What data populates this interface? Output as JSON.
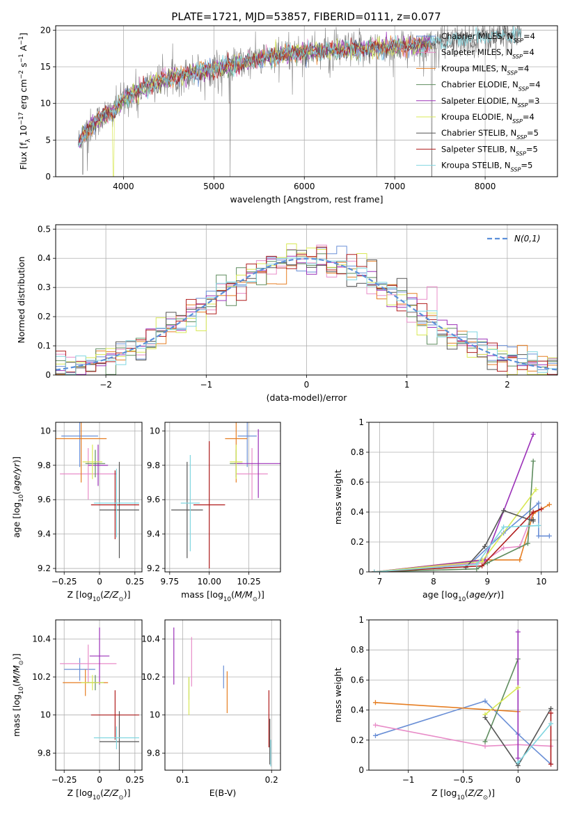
{
  "figure": {
    "title": "PLATE=1721, MJD=53857, FIBERID=0111, z=0.077"
  },
  "colors": {
    "Chabrier MILES": "#6a8fd6",
    "Salpeter MILES": "#e88cc8",
    "Kroupa MILES": "#e67e22",
    "Chabrier ELODIE": "#5e8c5e",
    "Salpeter ELODIE": "#9b30b8",
    "Kroupa ELODIE": "#d8e855",
    "Chabrier STELIB": "#555555",
    "Salpeter STELIB": "#b01c1c",
    "Kroupa STELIB": "#7fd6e0",
    "data": "#808080",
    "normal": "#5b8fd9",
    "grid": "#b0b0b0"
  },
  "chart_data": [
    {
      "id": "spectrum",
      "type": "line",
      "xlabel": "wavelength [Angstrom, rest frame]",
      "ylabel": "Flux [f_λ 10^-17 erg cm^-2 s^-1 A^-1]",
      "xlim": [
        3250,
        8800
      ],
      "ylim": [
        0,
        20.6
      ],
      "xticks": [
        4000,
        5000,
        6000,
        7000,
        8000
      ],
      "yticks": [
        0,
        5,
        10,
        15,
        20
      ],
      "legend_position": "upper-right",
      "legend": [
        {
          "label": "Chabrier MILES, N_SSP=4",
          "series": "Chabrier MILES"
        },
        {
          "label": "Salpeter MILES, N_SSP=4",
          "series": "Salpeter MILES"
        },
        {
          "label": "Kroupa MILES, N_SSP=4",
          "series": "Kroupa MILES"
        },
        {
          "label": "Chabrier ELODIE, N_SSP=4",
          "series": "Chabrier ELODIE"
        },
        {
          "label": "Salpeter ELODIE, N_SSP=3",
          "series": "Salpeter ELODIE"
        },
        {
          "label": "Kroupa ELODIE, N_SSP=4",
          "series": "Kroupa ELODIE"
        },
        {
          "label": "Chabrier STELIB, N_SSP=5",
          "series": "Chabrier STELIB"
        },
        {
          "label": "Salpeter STELIB, N_SSP=5",
          "series": "Salpeter STELIB"
        },
        {
          "label": "Kroupa STELIB, N_SSP=5",
          "series": "Kroupa STELIB"
        }
      ],
      "continuum": {
        "x": [
          3500,
          3600,
          3700,
          3800,
          3900,
          4000,
          4100,
          4200,
          4300,
          4400,
          4500,
          4700,
          4900,
          5100,
          5300,
          5500,
          5700,
          5900,
          6100,
          6300,
          6500,
          6700,
          6900,
          7100,
          7300,
          7500,
          7700,
          7900,
          8100,
          8300,
          8500
        ],
        "y": [
          4.5,
          6.5,
          7.5,
          8.5,
          9,
          10.5,
          11.5,
          12,
          12.5,
          13,
          13.5,
          14,
          14.5,
          15,
          15.5,
          16,
          16.5,
          17,
          17,
          17.2,
          17.3,
          17.5,
          17.6,
          17.8,
          18,
          18.3,
          18.6,
          18.9,
          19.2,
          19.4,
          19.6
        ]
      },
      "dips": [
        {
          "x": 3550,
          "y": 0.3
        },
        {
          "x": 3600,
          "y": 0.8
        },
        {
          "x": 5180,
          "y": 0
        },
        {
          "x": 6800,
          "y": 0
        },
        {
          "x": 7410,
          "y": 0
        }
      ]
    },
    {
      "id": "residuals",
      "type": "histogram",
      "xlabel": "(data-model)/error",
      "ylabel": "Normed distribution",
      "xlim": [
        -2.5,
        2.5
      ],
      "ylim": [
        0,
        0.515
      ],
      "xticks": [
        -2,
        -1,
        0,
        1,
        2
      ],
      "yticks": [
        0.0,
        0.1,
        0.2,
        0.3,
        0.4,
        0.5
      ],
      "bin_width": 0.1,
      "legend_position": "upper-right",
      "legend": [
        {
          "label": "N(0,1)",
          "style": "dashed"
        }
      ]
    },
    {
      "id": "age-vs-Z",
      "type": "errorbar",
      "xlabel": "Z [log10(Z/Z_sun)]",
      "ylabel": "age  [log10(age/yr)]",
      "xlim": [
        -0.31,
        0.3
      ],
      "ylim": [
        9.18,
        10.05
      ],
      "xticks": [
        -0.25,
        0.0,
        0.25
      ],
      "yticks": [
        9.2,
        9.4,
        9.6,
        9.8,
        10.0
      ],
      "points": [
        {
          "series": "Chabrier MILES",
          "x": -0.14,
          "xerr": 0.13,
          "y": 9.97,
          "yerr": 0.18
        },
        {
          "series": "Salpeter MILES",
          "x": -0.08,
          "xerr": 0.2,
          "y": 9.75,
          "yerr": 0.15
        },
        {
          "series": "Kroupa MILES",
          "x": -0.13,
          "xerr": 0.18,
          "y": 9.955,
          "yerr": 0.255
        },
        {
          "series": "Chabrier ELODIE",
          "x": -0.03,
          "xerr": 0.07,
          "y": 9.81,
          "yerr": 0.08
        },
        {
          "series": "Salpeter ELODIE",
          "x": -0.01,
          "xerr": 0.07,
          "y": 9.8,
          "yerr": 0.12
        },
        {
          "series": "Kroupa ELODIE",
          "x": -0.05,
          "xerr": 0.07,
          "y": 9.82,
          "yerr": 0.1
        },
        {
          "series": "Chabrier STELIB",
          "x": 0.14,
          "xerr": 0.14,
          "y": 9.54,
          "yerr": 0.28
        },
        {
          "series": "Salpeter STELIB",
          "x": 0.11,
          "xerr": 0.17,
          "y": 9.57,
          "yerr": 0.2
        },
        {
          "series": "Kroupa STELIB",
          "x": 0.12,
          "xerr": 0.16,
          "y": 9.58,
          "yerr": 0.2
        }
      ]
    },
    {
      "id": "age-vs-mass",
      "type": "errorbar",
      "xlabel": "mass [log10(M/M_sun)]",
      "ylabel": "",
      "xlim": [
        9.72,
        10.45
      ],
      "ylim": [
        9.18,
        10.05
      ],
      "xticks": [
        9.75,
        10.0,
        10.25
      ],
      "xtick_labels": [
        "9.75",
        "10.00",
        "10.25"
      ],
      "yticks": [
        9.2,
        9.4,
        9.6,
        9.8,
        10.0
      ],
      "points": [
        {
          "series": "Chabrier MILES",
          "x": 10.24,
          "xerr": 0.06,
          "y": 9.97,
          "yerr": 0.18
        },
        {
          "series": "Salpeter MILES",
          "x": 10.27,
          "xerr": 0.1,
          "y": 9.75,
          "yerr": 0.15
        },
        {
          "series": "Kroupa MILES",
          "x": 10.17,
          "xerr": 0.07,
          "y": 9.955,
          "yerr": 0.255
        },
        {
          "series": "Chabrier ELODIE",
          "x": 10.17,
          "xerr": 0.04,
          "y": 9.81,
          "yerr": 0.08
        },
        {
          "series": "Salpeter ELODIE",
          "x": 10.31,
          "xerr": 0.15,
          "y": 9.81,
          "yerr": 0.2
        },
        {
          "series": "Kroupa ELODIE",
          "x": 10.17,
          "xerr": 0.04,
          "y": 9.82,
          "yerr": 0.1
        },
        {
          "series": "Chabrier STELIB",
          "x": 9.86,
          "xerr": 0.1,
          "y": 9.54,
          "yerr": 0.28
        },
        {
          "series": "Salpeter STELIB",
          "x": 10.0,
          "xerr": 0.1,
          "y": 9.57,
          "yerr": 0.37
        },
        {
          "series": "Kroupa STELIB",
          "x": 9.88,
          "xerr": 0.06,
          "y": 9.58,
          "yerr": 0.28
        }
      ]
    },
    {
      "id": "mass-weight-vs-age",
      "type": "line",
      "xlabel": "age  [log10(age/yr)]",
      "ylabel": "mass weight",
      "xlim": [
        6.8,
        10.3
      ],
      "ylim": [
        0,
        1.0
      ],
      "xticks": [
        7,
        8,
        9,
        10
      ],
      "yticks": [
        0.0,
        0.2,
        0.4,
        0.6,
        0.8,
        1.0
      ],
      "series": [
        {
          "name": "Chabrier MILES",
          "x": [
            6.9,
            8.7,
            9.3,
            9.95,
            9.95,
            10.15
          ],
          "y": [
            0.0,
            0.06,
            0.26,
            0.46,
            0.24,
            0.24
          ]
        },
        {
          "name": "Salpeter MILES",
          "x": [
            6.9,
            8.9,
            9.3,
            9.6,
            9.85
          ],
          "y": [
            0.0,
            0.06,
            0.16,
            0.17,
            0.4
          ]
        },
        {
          "name": "Kroupa MILES",
          "x": [
            6.9,
            8.9,
            9.6,
            9.85,
            10.15
          ],
          "y": [
            0.0,
            0.08,
            0.08,
            0.39,
            0.45
          ]
        },
        {
          "name": "Chabrier ELODIE",
          "x": [
            6.9,
            8.8,
            9.0,
            9.75,
            9.85
          ],
          "y": [
            0.0,
            0.02,
            0.06,
            0.19,
            0.74
          ]
        },
        {
          "name": "Salpeter ELODIE",
          "x": [
            6.9,
            8.95,
            9.85
          ],
          "y": [
            0.0,
            0.08,
            0.92
          ]
        },
        {
          "name": "Kroupa ELODIE",
          "x": [
            6.9,
            8.9,
            9.9
          ],
          "y": [
            0.0,
            0.07,
            0.55
          ]
        },
        {
          "name": "Chabrier STELIB",
          "x": [
            8.6,
            8.95,
            9.3,
            9.85,
            9.85
          ],
          "y": [
            0.03,
            0.17,
            0.41,
            0.34,
            0.35
          ]
        },
        {
          "name": "Salpeter STELIB",
          "x": [
            6.9,
            8.9,
            9.85,
            10.0
          ],
          "y": [
            0.0,
            0.04,
            0.4,
            0.42
          ]
        },
        {
          "name": "Kroupa STELIB",
          "x": [
            6.9,
            8.8,
            9.3,
            9.95
          ],
          "y": [
            0.0,
            0.05,
            0.3,
            0.31
          ]
        }
      ]
    },
    {
      "id": "mass-vs-Z",
      "type": "errorbar",
      "xlabel": "Z [log10(Z/Z_sun)]",
      "ylabel": "mass [log10(M/M_sun)]",
      "xlim": [
        -0.31,
        0.3
      ],
      "ylim": [
        9.71,
        10.5
      ],
      "xticks": [
        -0.25,
        0.0,
        0.25
      ],
      "yticks": [
        9.8,
        10.0,
        10.2,
        10.4
      ],
      "points": [
        {
          "series": "Chabrier MILES",
          "x": -0.14,
          "xerr": 0.11,
          "y": 10.24,
          "yerr": 0.06
        },
        {
          "series": "Salpeter MILES",
          "x": -0.08,
          "xerr": 0.2,
          "y": 10.27,
          "yerr": 0.1
        },
        {
          "series": "Kroupa MILES",
          "x": -0.1,
          "xerr": 0.16,
          "y": 10.17,
          "yerr": 0.07
        },
        {
          "series": "Chabrier ELODIE",
          "x": -0.03,
          "xerr": 0.06,
          "y": 10.17,
          "yerr": 0.04
        },
        {
          "series": "Salpeter ELODIE",
          "x": 0.0,
          "xerr": 0.07,
          "y": 10.31,
          "yerr": 0.15
        },
        {
          "series": "Kroupa ELODIE",
          "x": -0.05,
          "xerr": 0.08,
          "y": 10.17,
          "yerr": 0.04
        },
        {
          "series": "Chabrier STELIB",
          "x": 0.14,
          "xerr": 0.14,
          "y": 9.86,
          "yerr": 0.16
        },
        {
          "series": "Salpeter STELIB",
          "x": 0.11,
          "xerr": 0.17,
          "y": 10.0,
          "yerr": 0.13
        },
        {
          "series": "Kroupa STELIB",
          "x": 0.12,
          "xerr": 0.16,
          "y": 9.88,
          "yerr": 0.06
        }
      ]
    },
    {
      "id": "mass-vs-EBV",
      "type": "errorbar",
      "xlabel": "E(B-V)",
      "ylabel": "",
      "xlim": [
        0.08,
        0.21
      ],
      "ylim": [
        9.71,
        10.5
      ],
      "xticks": [
        0.1,
        0.2
      ],
      "yticks": [
        9.8,
        10.0,
        10.2,
        10.4
      ],
      "points": [
        {
          "series": "Chabrier MILES",
          "x": 0.146,
          "xerr": 0.0,
          "y": 10.2,
          "yerr": 0.06
        },
        {
          "series": "Salpeter MILES",
          "x": 0.11,
          "xerr": 0.0,
          "y": 10.28,
          "yerr": 0.13
        },
        {
          "series": "Kroupa MILES",
          "x": 0.15,
          "xerr": 0.0,
          "y": 10.12,
          "yerr": 0.11
        },
        {
          "series": "Chabrier ELODIE",
          "x": 0.107,
          "xerr": 0.0,
          "y": 10.14,
          "yerr": 0.06
        },
        {
          "series": "Salpeter ELODIE",
          "x": 0.09,
          "xerr": 0.0,
          "y": 10.31,
          "yerr": 0.15
        },
        {
          "series": "Kroupa ELODIE",
          "x": 0.107,
          "xerr": 0.0,
          "y": 10.1,
          "yerr": 0.1
        },
        {
          "series": "Chabrier STELIB",
          "x": 0.198,
          "xerr": 0.0,
          "y": 9.86,
          "yerr": 0.12
        },
        {
          "series": "Salpeter STELIB",
          "x": 0.197,
          "xerr": 0.0,
          "y": 9.98,
          "yerr": 0.15
        },
        {
          "series": "Kroupa STELIB",
          "x": 0.199,
          "xerr": 0.0,
          "y": 9.8,
          "yerr": 0.07
        }
      ]
    },
    {
      "id": "mass-weight-vs-Z",
      "type": "line",
      "xlabel": "Z [log10(Z/Z_sun)]",
      "ylabel": "mass weight",
      "xlim": [
        -1.36,
        0.36
      ],
      "ylim": [
        0,
        1.0
      ],
      "xticks": [
        -1.0,
        -0.5,
        0.0
      ],
      "yticks": [
        0.0,
        0.2,
        0.4,
        0.6,
        0.8,
        1.0
      ],
      "series": [
        {
          "name": "Chabrier MILES",
          "x": [
            -1.3,
            -0.3,
            0.0,
            0.3
          ],
          "y": [
            0.23,
            0.46,
            0.24,
            0.04
          ]
        },
        {
          "name": "Salpeter MILES",
          "x": [
            -1.3,
            -0.3,
            0.0,
            0.3
          ],
          "y": [
            0.3,
            0.16,
            0.17,
            0.16
          ]
        },
        {
          "name": "Kroupa MILES",
          "x": [
            -1.3,
            0.0
          ],
          "y": [
            0.45,
            0.39
          ]
        },
        {
          "name": "Chabrier ELODIE",
          "x": [
            -0.3,
            0.0
          ],
          "y": [
            0.19,
            0.74
          ]
        },
        {
          "name": "Salpeter ELODIE",
          "x": [
            0.0,
            0.0
          ],
          "y": [
            0.08,
            0.92
          ]
        },
        {
          "name": "Kroupa ELODIE",
          "x": [
            -0.3,
            0.0
          ],
          "y": [
            0.37,
            0.55
          ]
        },
        {
          "name": "Chabrier STELIB",
          "x": [
            -0.3,
            0.0,
            0.3
          ],
          "y": [
            0.35,
            0.03,
            0.41
          ]
        },
        {
          "name": "Salpeter STELIB",
          "x": [
            0.3,
            0.3
          ],
          "y": [
            0.04,
            0.38
          ]
        },
        {
          "name": "Kroupa STELIB",
          "x": [
            0.0,
            0.3
          ],
          "y": [
            0.05,
            0.31
          ]
        }
      ]
    }
  ]
}
